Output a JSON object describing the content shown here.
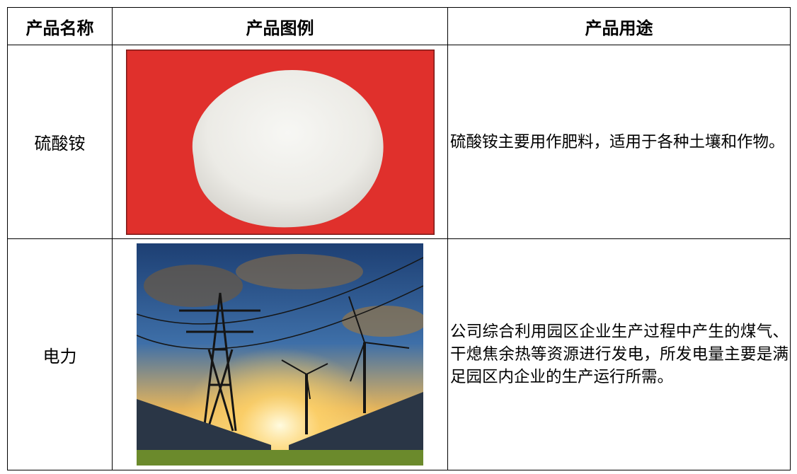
{
  "table": {
    "headers": [
      "产品名称",
      "产品图例",
      "产品用途"
    ],
    "rows": [
      {
        "name": "硫酸铵",
        "description": "硫酸铵主要用作肥料，适用于各种土壤和作物。"
      },
      {
        "name": "电力",
        "description": "公司综合利用园区企业生产过程中产生的煤气、干熄焦余热等资源进行发电，所发电量主要是满足园区内企业的生产运行所需。"
      }
    ]
  }
}
